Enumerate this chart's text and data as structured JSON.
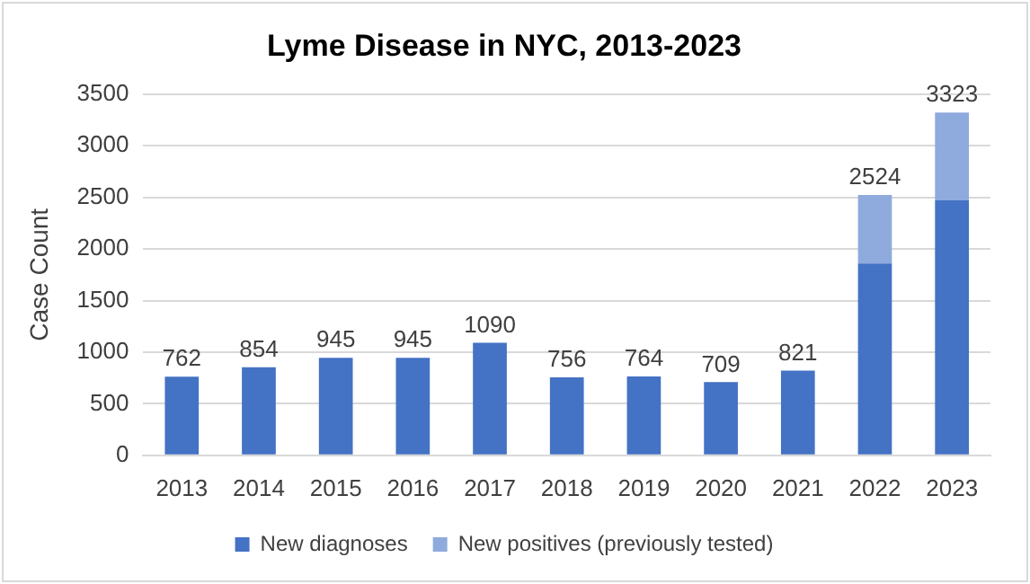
{
  "chart_data": {
    "type": "bar",
    "title": "Lyme Disease in NYC, 2013-2023",
    "ylabel": "Case Count",
    "categories": [
      "2013",
      "2014",
      "2015",
      "2016",
      "2017",
      "2018",
      "2019",
      "2020",
      "2021",
      "2022",
      "2023"
    ],
    "series": [
      {
        "name": "New diagnoses",
        "color": "#4472c4",
        "values": [
          762,
          854,
          945,
          945,
          1090,
          756,
          764,
          709,
          821,
          1860,
          2470
        ]
      },
      {
        "name": "New positives (previously tested)",
        "color": "#8faadc",
        "values": [
          null,
          null,
          null,
          null,
          null,
          null,
          null,
          null,
          null,
          664,
          853
        ]
      }
    ],
    "stacked": true,
    "totals": [
      "762",
      "854",
      "945",
      "945",
      "1090",
      "756",
      "764",
      "709",
      "821",
      "2524",
      "3323"
    ],
    "ylim": [
      0,
      3500
    ],
    "yticks": [
      0,
      500,
      1000,
      1500,
      2000,
      2500,
      3000,
      3500
    ],
    "grid": "y",
    "legend": "bottom"
  }
}
